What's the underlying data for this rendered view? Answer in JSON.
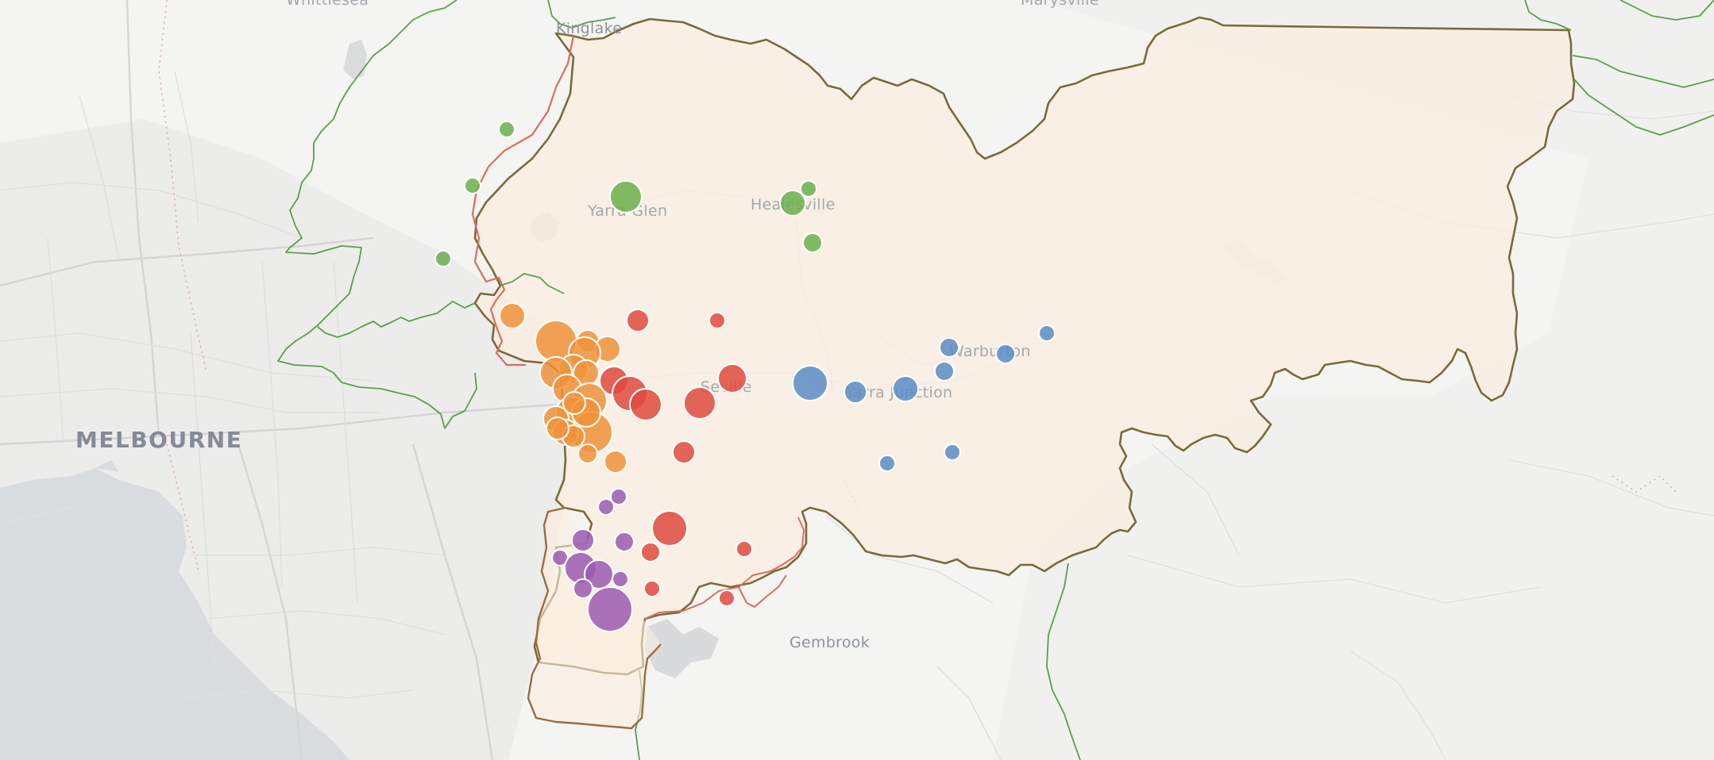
{
  "map": {
    "labels": {
      "top_left": "Whittlesea",
      "kinglake": "Kinglake",
      "top_right": "Marysville",
      "yarra_glen": "Yarra Glen",
      "healesville": "Healesville",
      "warburton": "Warburton",
      "seville": "Seville",
      "yarra_junction": "Yarra Junction",
      "melbourne": "MELBOURNE",
      "gembrook": "Gembrook"
    },
    "colors": {
      "water": "#d9dcdf",
      "land": "#f4f4f2",
      "region_fill": "#fbeee0",
      "region_outline": "#7a6a3a",
      "lga_boundary_green": "#5d9e4a",
      "lga_boundary_red": "#e06b5c",
      "lga_boundary_brown": "#a06a40"
    },
    "series": [
      {
        "name": "green",
        "color": "#6ab04c"
      },
      {
        "name": "orange",
        "color": "#f0923a"
      },
      {
        "name": "red",
        "color": "#df4a3e"
      },
      {
        "name": "blue",
        "color": "#5b8cc4"
      },
      {
        "name": "purple",
        "color": "#9b5bb0"
      }
    ]
  }
}
